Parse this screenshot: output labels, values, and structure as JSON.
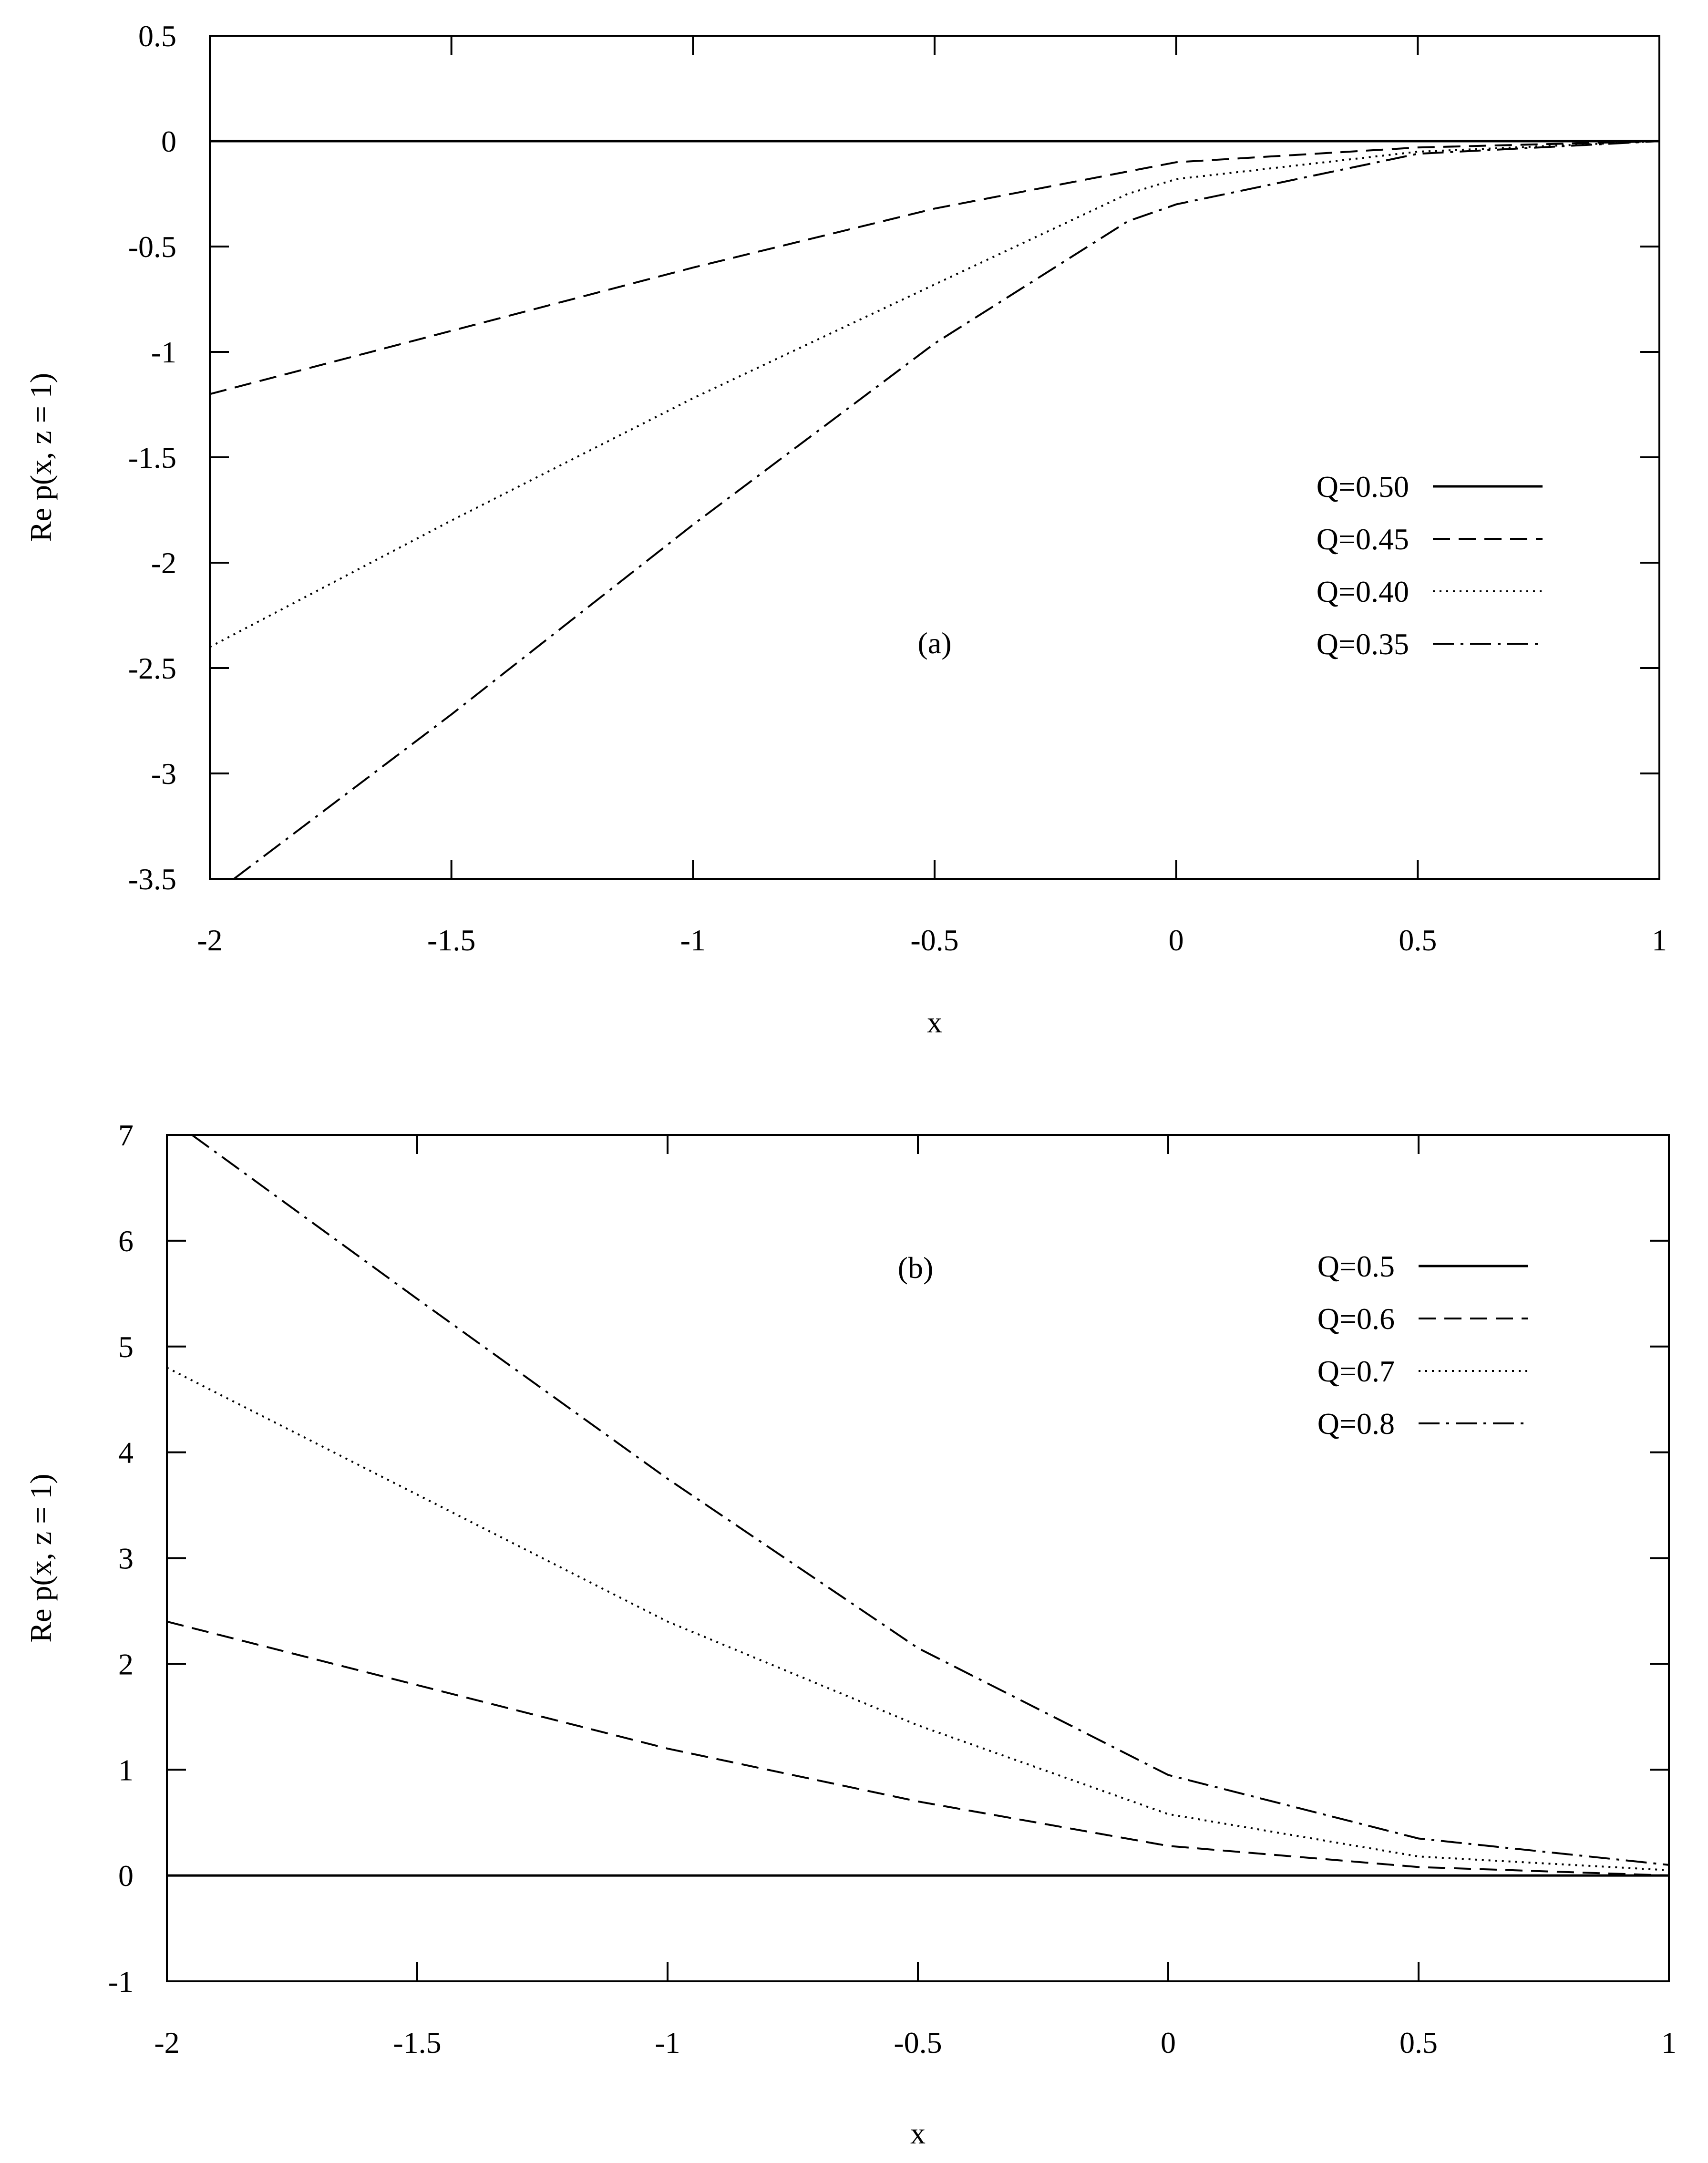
{
  "chart_data": [
    {
      "type": "line",
      "panel_label": "(a)",
      "xlabel": "x",
      "ylabel": "Re p(x, z = 1)",
      "xlim": [
        -2,
        1
      ],
      "ylim": [
        -3.5,
        0.5
      ],
      "x_ticks": [
        "-2",
        "-1.5",
        "-1",
        "-0.5",
        "0",
        "0.5",
        "1"
      ],
      "y_ticks": [
        "0.5",
        "0",
        "-0.5",
        "-1",
        "-1.5",
        "-2",
        "-2.5",
        "-3",
        "-3.5"
      ],
      "grid": false,
      "legend_position": "right",
      "series": [
        {
          "name": "Q=0.50",
          "style": "solid",
          "x": [
            -2,
            1
          ],
          "y": [
            0,
            0
          ]
        },
        {
          "name": "Q=0.45",
          "style": "dashed",
          "x": [
            -2,
            -1.5,
            -1,
            -0.5,
            0,
            0.5,
            1
          ],
          "y": [
            -1.2,
            -0.9,
            -0.6,
            -0.32,
            -0.1,
            -0.03,
            0
          ]
        },
        {
          "name": "Q=0.40",
          "style": "dotted",
          "x": [
            -2,
            -1.5,
            -1,
            -0.5,
            -0.1,
            0,
            0.5,
            1
          ],
          "y": [
            -2.4,
            -1.8,
            -1.22,
            -0.68,
            -0.25,
            -0.18,
            -0.05,
            0
          ]
        },
        {
          "name": "Q=0.35",
          "style": "dashdot",
          "x": [
            -1.95,
            -1.5,
            -1,
            -0.5,
            -0.1,
            0,
            0.5,
            1
          ],
          "y": [
            -3.5,
            -2.72,
            -1.82,
            -0.96,
            -0.38,
            -0.3,
            -0.06,
            0
          ]
        }
      ]
    },
    {
      "type": "line",
      "panel_label": "(b)",
      "xlabel": "x",
      "ylabel": "Re p(x, z = 1)",
      "xlim": [
        -2,
        1
      ],
      "ylim": [
        -1,
        7
      ],
      "x_ticks": [
        "-2",
        "-1.5",
        "-1",
        "-0.5",
        "0",
        "0.5",
        "1"
      ],
      "y_ticks": [
        "7",
        "6",
        "5",
        "4",
        "3",
        "2",
        "1",
        "0",
        "-1"
      ],
      "grid": false,
      "legend_position": "top-right",
      "series": [
        {
          "name": "Q=0.5",
          "style": "solid",
          "x": [
            -2,
            1
          ],
          "y": [
            0,
            0
          ]
        },
        {
          "name": "Q=0.6",
          "style": "dashed",
          "x": [
            -2,
            -1.5,
            -1,
            -0.5,
            0,
            0.5,
            1
          ],
          "y": [
            2.4,
            1.8,
            1.2,
            0.7,
            0.28,
            0.08,
            0
          ]
        },
        {
          "name": "Q=0.7",
          "style": "dotted",
          "x": [
            -2,
            -1.5,
            -1,
            -0.5,
            0,
            0.5,
            1
          ],
          "y": [
            4.8,
            3.6,
            2.4,
            1.42,
            0.58,
            0.18,
            0.05
          ]
        },
        {
          "name": "Q=0.8",
          "style": "dashdot",
          "x": [
            -1.95,
            -1.5,
            -1,
            -0.5,
            0,
            0.5,
            1
          ],
          "y": [
            7.0,
            5.45,
            3.75,
            2.15,
            0.95,
            0.35,
            0.1
          ]
        }
      ]
    }
  ]
}
